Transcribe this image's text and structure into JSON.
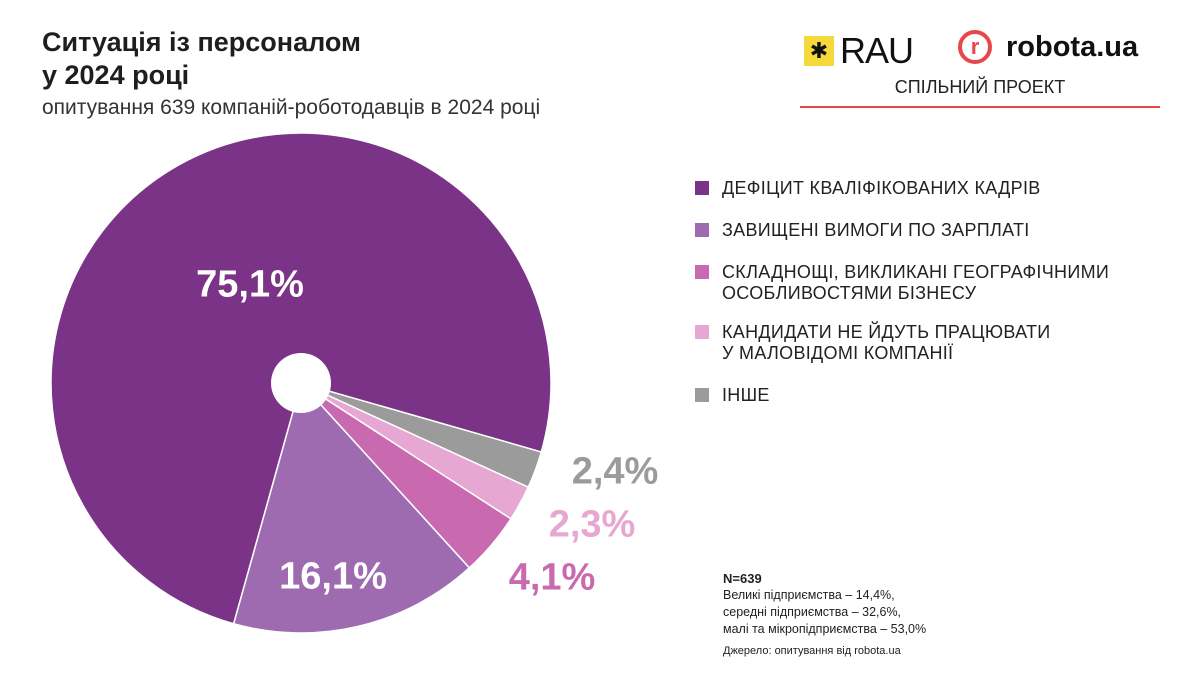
{
  "header": {
    "title_line1": "Ситуація із персоналом",
    "title_line2": "у 2024 році",
    "subtitle": "опитування 639 компаній-роботодавців в 2024 році"
  },
  "logos": {
    "rau": "RAU",
    "robota": "robota.ua",
    "robota_mark": "r",
    "joint": "СПІЛЬНИЙ ПРОЕКТ",
    "rau_mark": "✱"
  },
  "chart_data": {
    "type": "pie",
    "title": "Ситуація із персоналом у 2024 році",
    "legend_position": "right",
    "slices": [
      {
        "name": "ДЕФІЦИТ КВАЛІФІКОВАНИХ КАДРІВ",
        "name2": "",
        "value": 75.1,
        "label": "75,1%",
        "color": "#7a3387",
        "label_color": "#ffffff"
      },
      {
        "name": "ЗАВИЩЕНІ ВИМОГИ ПО ЗАРПЛАТІ",
        "name2": "",
        "value": 16.1,
        "label": "16,1%",
        "color": "#9e6bb0",
        "label_color": "#ffffff"
      },
      {
        "name": "СКЛАДНОЩІ, ВИКЛИКАНІ ГЕОГРАФІЧНИМИ",
        "name2": "ОСОБЛИВОСТЯМИ БІЗНЕСУ",
        "value": 4.1,
        "label": "4,1%",
        "color": "#c969b0",
        "label_color": "#c969b0"
      },
      {
        "name": "КАНДИДАТИ НЕ ЙДУТЬ ПРАЦЮВАТИ",
        "name2": "У МАЛОВІДОМІ КОМПАНІЇ",
        "value": 2.3,
        "label": "2,3%",
        "color": "#e6a8d2",
        "label_color": "#e6a8d2"
      },
      {
        "name": "ІНШЕ",
        "name2": "",
        "value": 2.4,
        "label": "2,4%",
        "color": "#9b9b9b",
        "label_color": "#9b9b9b"
      }
    ]
  },
  "notes": {
    "n": "N=639",
    "l1": "Великі підприємства – 14,4%,",
    "l2": "середні підприємства – 32,6%,",
    "l3": "малі та мікропідприємства – 53,0%",
    "source": "Джерело: опитування від robota.ua"
  }
}
